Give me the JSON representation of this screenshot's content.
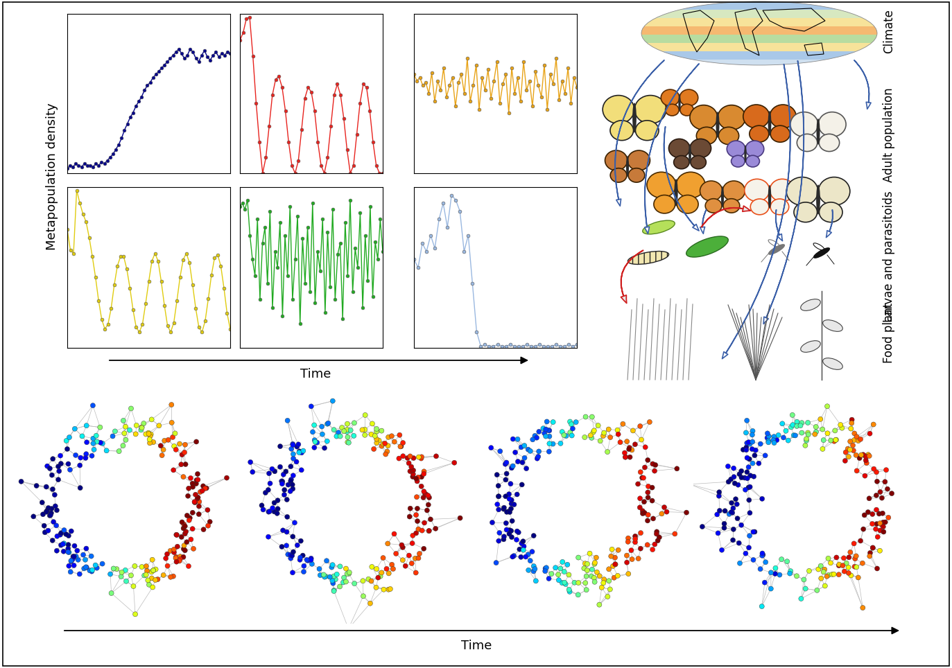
{
  "time_series": {
    "ylabel": "Metapopulation density",
    "xlabel": "Time"
  },
  "chart_data": [
    {
      "type": "line",
      "color": "#00008b",
      "marker": "o",
      "tick_labels": false,
      "xlim": [
        0,
        57
      ],
      "ylim": [
        0,
        1
      ],
      "values": [
        0.03,
        0.05,
        0.04,
        0.06,
        0.05,
        0.04,
        0.06,
        0.05,
        0.05,
        0.04,
        0.06,
        0.05,
        0.07,
        0.06,
        0.08,
        0.1,
        0.12,
        0.15,
        0.18,
        0.22,
        0.27,
        0.31,
        0.35,
        0.38,
        0.42,
        0.45,
        0.48,
        0.52,
        0.55,
        0.57,
        0.6,
        0.62,
        0.64,
        0.66,
        0.68,
        0.7,
        0.72,
        0.74,
        0.76,
        0.78,
        0.75,
        0.72,
        0.74,
        0.78,
        0.76,
        0.72,
        0.7,
        0.74,
        0.77,
        0.73,
        0.71,
        0.74,
        0.76,
        0.73,
        0.75,
        0.74,
        0.76,
        0.75
      ]
    },
    {
      "type": "line",
      "color": "#e8231e",
      "marker": "o",
      "tick_labels": false,
      "xlim": [
        0,
        44
      ],
      "ylim": [
        0,
        1.02
      ],
      "values": [
        0.85,
        0.9,
        0.99,
        1.0,
        0.75,
        0.45,
        0.2,
        0.0,
        0.1,
        0.3,
        0.5,
        0.6,
        0.62,
        0.55,
        0.4,
        0.2,
        0.05,
        0.0,
        0.08,
        0.28,
        0.48,
        0.55,
        0.52,
        0.4,
        0.2,
        0.05,
        0.0,
        0.1,
        0.3,
        0.5,
        0.57,
        0.5,
        0.35,
        0.15,
        0.0,
        0.05,
        0.25,
        0.45,
        0.57,
        0.55,
        0.4,
        0.2,
        0.05,
        0.0,
        0.0
      ]
    },
    {
      "type": "line",
      "color": "#e8a317",
      "marker": "o",
      "tick_labels": false,
      "xlim": [
        0,
        55
      ],
      "ylim": [
        0,
        1
      ],
      "values": [
        0.62,
        0.58,
        0.6,
        0.55,
        0.57,
        0.5,
        0.63,
        0.45,
        0.58,
        0.52,
        0.66,
        0.48,
        0.55,
        0.6,
        0.42,
        0.57,
        0.62,
        0.5,
        0.72,
        0.45,
        0.55,
        0.68,
        0.4,
        0.6,
        0.52,
        0.65,
        0.47,
        0.58,
        0.7,
        0.44,
        0.56,
        0.62,
        0.38,
        0.66,
        0.5,
        0.6,
        0.45,
        0.7,
        0.52,
        0.58,
        0.42,
        0.64,
        0.55,
        0.48,
        0.68,
        0.4,
        0.62,
        0.56,
        0.72,
        0.46,
        0.58,
        0.5,
        0.66,
        0.44,
        0.6,
        0.54
      ]
    },
    {
      "type": "line",
      "color": "#e0cc10",
      "marker": "o",
      "tick_labels": false,
      "xlim": [
        0,
        52
      ],
      "ylim": [
        0,
        1.02
      ],
      "values": [
        0.75,
        0.62,
        0.6,
        1.0,
        0.92,
        0.85,
        0.8,
        0.7,
        0.58,
        0.45,
        0.3,
        0.18,
        0.12,
        0.15,
        0.25,
        0.4,
        0.52,
        0.58,
        0.58,
        0.5,
        0.38,
        0.24,
        0.13,
        0.1,
        0.15,
        0.28,
        0.42,
        0.55,
        0.6,
        0.55,
        0.42,
        0.27,
        0.14,
        0.1,
        0.16,
        0.3,
        0.45,
        0.56,
        0.6,
        0.54,
        0.4,
        0.25,
        0.13,
        0.1,
        0.17,
        0.31,
        0.46,
        0.57,
        0.59,
        0.52,
        0.38,
        0.22,
        0.12
      ]
    },
    {
      "type": "line",
      "color": "#22aa22",
      "marker": "o",
      "tick_labels": false,
      "xlim": [
        0,
        57
      ],
      "ylim": [
        0,
        1
      ],
      "values": [
        0.88,
        0.9,
        0.86,
        0.92,
        0.7,
        0.55,
        0.45,
        0.8,
        0.3,
        0.65,
        0.75,
        0.4,
        0.85,
        0.25,
        0.6,
        0.5,
        0.78,
        0.2,
        0.7,
        0.45,
        0.88,
        0.3,
        0.55,
        0.82,
        0.15,
        0.68,
        0.4,
        0.75,
        0.35,
        0.9,
        0.28,
        0.6,
        0.48,
        0.8,
        0.22,
        0.72,
        0.38,
        0.86,
        0.3,
        0.58,
        0.65,
        0.18,
        0.78,
        0.45,
        0.92,
        0.35,
        0.62,
        0.5,
        0.84,
        0.25,
        0.7,
        0.42,
        0.88,
        0.32,
        0.66,
        0.55,
        0.8,
        0.6
      ]
    },
    {
      "type": "line",
      "color": "#9ab8e0",
      "marker": "o",
      "tick_labels": false,
      "xlim": [
        0,
        39
      ],
      "ylim": [
        0,
        1
      ],
      "values": [
        0.55,
        0.5,
        0.65,
        0.6,
        0.7,
        0.62,
        0.8,
        0.9,
        0.75,
        0.95,
        0.92,
        0.85,
        0.6,
        0.7,
        0.4,
        0.1,
        0.01,
        0.02,
        0.01,
        0.01,
        0.02,
        0.01,
        0.01,
        0.02,
        0.01,
        0.01,
        0.01,
        0.02,
        0.01,
        0.01,
        0.02,
        0.01,
        0.01,
        0.01,
        0.02,
        0.01,
        0.01,
        0.02,
        0.01,
        0.02
      ]
    }
  ],
  "food_web": {
    "levels": [
      "Climate",
      "Adult population",
      "Larvae and parasitoids",
      "Food plant"
    ]
  },
  "network": {
    "xlabel": "Time"
  }
}
